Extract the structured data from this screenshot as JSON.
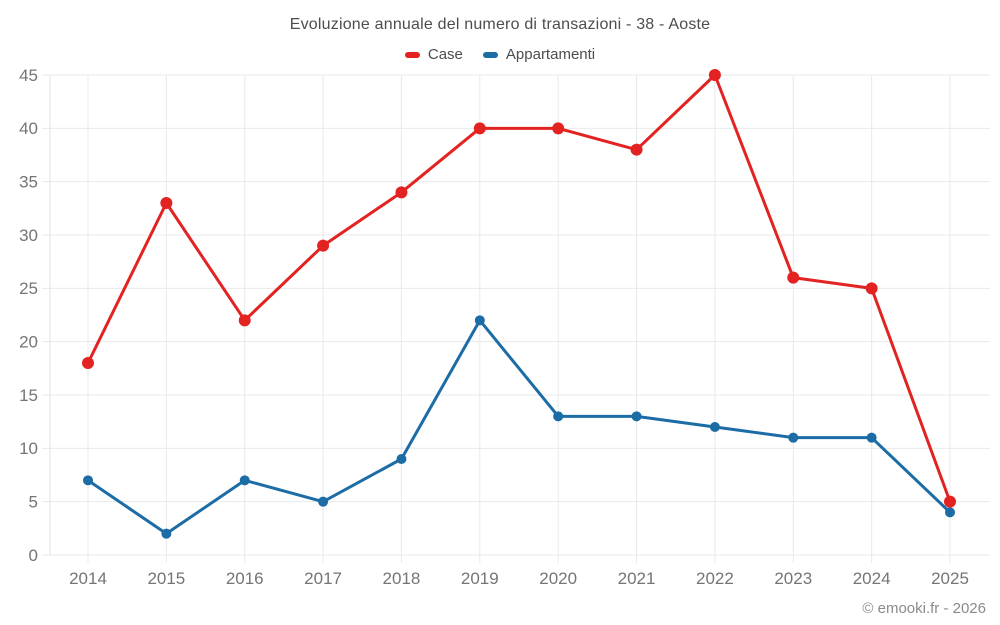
{
  "page": {
    "copyright": "© emooki.fr - 2026"
  },
  "chart_data": {
    "type": "line",
    "title": "Evoluzione annuale del numero di transazioni - 38 - Aoste",
    "categories": [
      "2014",
      "2015",
      "2016",
      "2017",
      "2018",
      "2019",
      "2020",
      "2021",
      "2022",
      "2023",
      "2024",
      "2025"
    ],
    "series": [
      {
        "name": "Case",
        "color": "#e32322",
        "marker_radius": 6,
        "values": [
          18,
          33,
          22,
          29,
          34,
          40,
          40,
          38,
          45,
          26,
          25,
          5
        ]
      },
      {
        "name": "Appartamenti",
        "color": "#1c6ca6",
        "marker_radius": 5,
        "values": [
          7,
          2,
          7,
          5,
          9,
          22,
          13,
          13,
          12,
          11,
          11,
          4
        ]
      }
    ],
    "xlabel": "",
    "ylabel": "",
    "ylim": [
      0,
      45
    ],
    "ytick_step": 5,
    "grid": true,
    "legend_position": "top"
  }
}
